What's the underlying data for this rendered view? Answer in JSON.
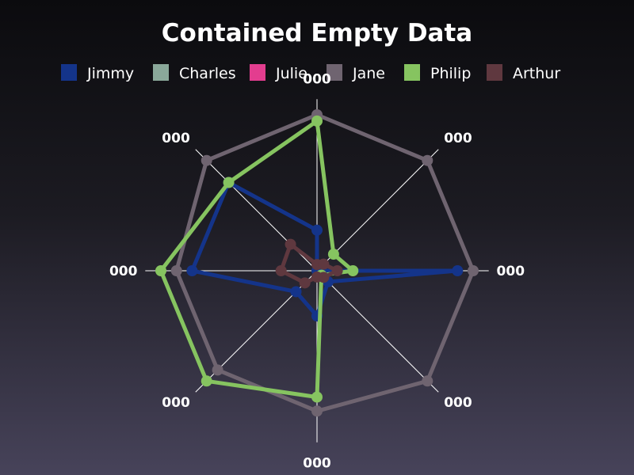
{
  "chart_data": {
    "type": "radar",
    "title": "Contained Empty Data",
    "legend_position": "top",
    "axes": [
      "000",
      "000",
      "000",
      "000",
      "000",
      "000",
      "000",
      "000"
    ],
    "range": [
      0,
      10
    ],
    "series": [
      {
        "name": "Jimmy",
        "color": "#14348a",
        "values": [
          2.6,
          0.0,
          9.0,
          1.0,
          2.9,
          1.9,
          8.0,
          8.0
        ]
      },
      {
        "name": "Charles",
        "color": "#8aa89a",
        "values": [
          null,
          null,
          null,
          null,
          null,
          null,
          null,
          null
        ]
      },
      {
        "name": "Julie",
        "color": "#e33d8f",
        "values": [
          null,
          null,
          null,
          null,
          null,
          null,
          null,
          null
        ]
      },
      {
        "name": "Jane",
        "color": "#6f6470",
        "values": [
          10.0,
          10.0,
          10.0,
          10.0,
          9.0,
          9.0,
          9.0,
          10.0
        ]
      },
      {
        "name": "Philip",
        "color": "#86c460",
        "values": [
          9.6,
          1.5,
          2.3,
          0.4,
          8.1,
          10.0,
          10.0,
          8.0
        ]
      },
      {
        "name": "Arthur",
        "color": "#5f383f",
        "values": [
          0.4,
          0.6,
          1.3,
          0.6,
          0.4,
          1.1,
          2.3,
          2.4
        ]
      }
    ]
  }
}
